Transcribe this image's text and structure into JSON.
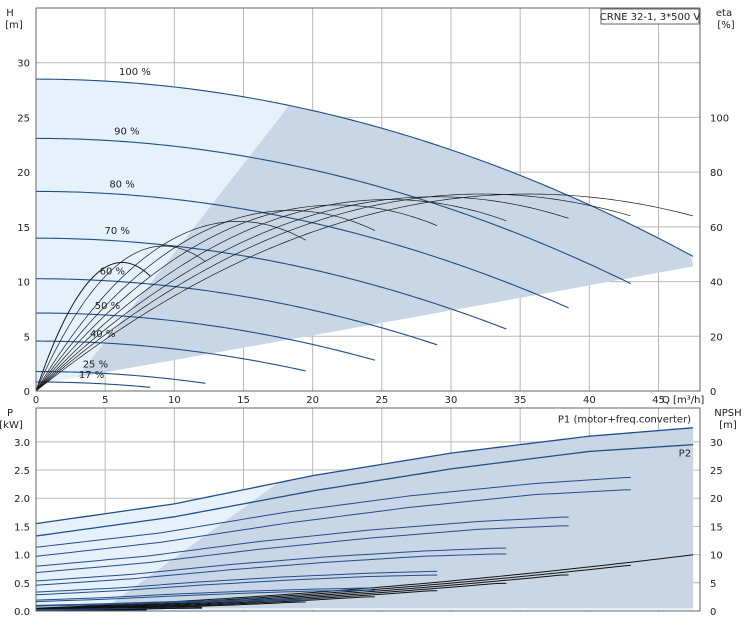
{
  "chart_data": [
    {
      "type": "line",
      "title": "CRNE 32-1, 3*500 V",
      "xlabel": "Q [m³/h]",
      "ylabel": "H",
      "ylabel_unit": "[m]",
      "y2label": "eta",
      "y2label_unit": "[%]",
      "xlim": [
        0,
        48
      ],
      "ylim": [
        0,
        35
      ],
      "y2lim": [
        0,
        140
      ],
      "x_ticks": [
        "0",
        "5",
        "10",
        "15",
        "20",
        "25",
        "30",
        "35",
        "40",
        "45"
      ],
      "y_ticks": [
        "0",
        "5",
        "10",
        "15",
        "20",
        "25",
        "30"
      ],
      "y2_ticks": [
        "0",
        "20",
        "40",
        "60",
        "80",
        "100"
      ],
      "grid": true,
      "speed_labels": [
        "100 %",
        "90 %",
        "80 %",
        "70 %",
        "60 %",
        "50 %",
        "40 %",
        "25 %",
        "17 %"
      ],
      "speed_fractions": [
        1.0,
        0.9,
        0.8,
        0.7,
        0.6,
        0.5,
        0.4,
        0.25,
        0.17
      ],
      "qh_curves": [
        {
          "name": "100 %",
          "x": [
            0,
            10,
            20,
            30,
            40,
            47.5
          ],
          "y": [
            28.5,
            27.5,
            24.5,
            20.5,
            16.0,
            12.3
          ]
        },
        {
          "name": "90 %",
          "x": [
            0,
            10,
            20,
            30,
            43.0
          ],
          "y": [
            23.2,
            22.2,
            19.5,
            15.5,
            10.0
          ]
        },
        {
          "name": "80 %",
          "x": [
            0,
            10,
            20,
            30,
            38.5
          ],
          "y": [
            18.4,
            17.4,
            14.8,
            10.8,
            8.0
          ]
        },
        {
          "name": "70 %",
          "x": [
            0,
            10,
            20,
            34.0
          ],
          "y": [
            14.2,
            13.2,
            10.5,
            6.1
          ]
        },
        {
          "name": "60 %",
          "x": [
            0,
            10,
            20,
            29.0
          ],
          "y": [
            10.4,
            9.6,
            7.0,
            4.5
          ]
        },
        {
          "name": "50 %",
          "x": [
            0,
            10,
            20,
            24.5
          ],
          "y": [
            7.3,
            6.5,
            4.2,
            3.3
          ]
        },
        {
          "name": "40 %",
          "x": [
            0,
            10,
            19.5
          ],
          "y": [
            4.6,
            4.0,
            2.1
          ]
        },
        {
          "name": "25 %",
          "x": [
            0,
            6,
            12.3
          ],
          "y": [
            1.9,
            1.6,
            0.9
          ]
        },
        {
          "name": "17 %",
          "x": [
            0,
            4,
            8.3
          ],
          "y": [
            0.8,
            0.7,
            0.4
          ]
        }
      ],
      "efficiency_max": [
        72,
        72,
        71,
        70,
        68,
        66,
        62,
        53,
        47
      ]
    },
    {
      "type": "line",
      "ylabel": "P",
      "ylabel_unit": "[kW]",
      "y2label": "NPSH",
      "y2label_unit": "[m]",
      "xlim": [
        0,
        48
      ],
      "ylim": [
        0,
        3.6
      ],
      "y2lim": [
        0,
        36
      ],
      "y_ticks": [
        "0.0",
        "0.5",
        "1.0",
        "1.5",
        "2.0",
        "2.5",
        "3.0"
      ],
      "y2_ticks": [
        "0",
        "5",
        "10",
        "15",
        "20",
        "25",
        "30"
      ],
      "grid": true,
      "series": [
        {
          "name": "P1 (motor+freq.converter)",
          "x": [
            0,
            10,
            20,
            30,
            40,
            47.5
          ],
          "y": [
            1.55,
            1.9,
            2.4,
            2.8,
            3.1,
            3.25
          ]
        },
        {
          "name": "P2",
          "x": [
            0,
            10,
            20,
            30,
            40,
            47.5
          ],
          "y": [
            1.33,
            1.67,
            2.13,
            2.52,
            2.83,
            2.95
          ]
        }
      ],
      "npsh": {
        "x": [
          0,
          10,
          20,
          30,
          40,
          47.5
        ],
        "y": [
          0.5,
          0.8,
          1.8,
          3.6,
          6.5,
          10.0
        ]
      }
    }
  ]
}
